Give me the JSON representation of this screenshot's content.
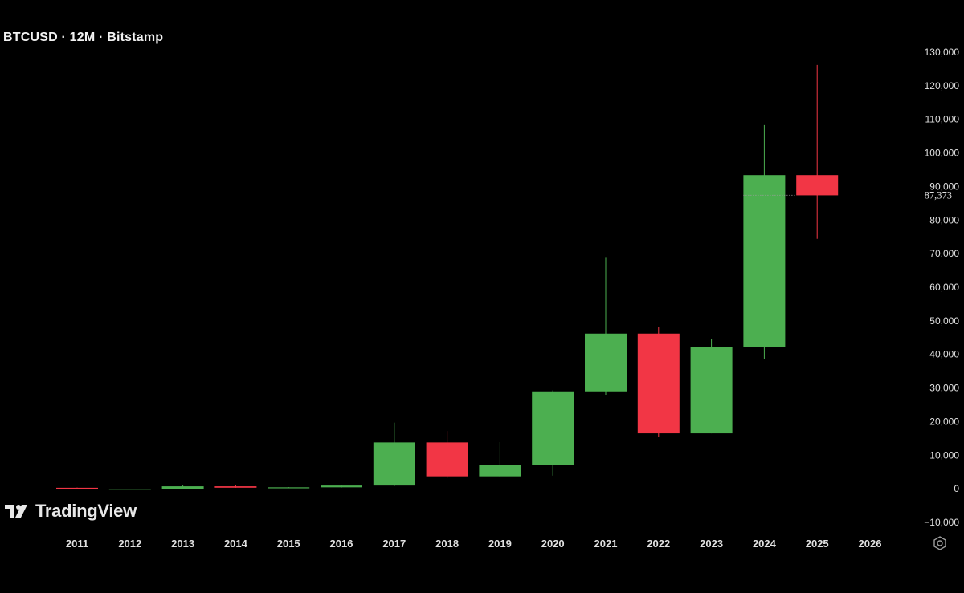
{
  "header": {
    "title": "BTCUSD · 12M · Bitstamp"
  },
  "branding": {
    "name": "TradingView"
  },
  "colors": {
    "up": "#4CAF50",
    "down": "#F23645",
    "background": "#000000",
    "axis_text": "#E0E0E0",
    "last_price_label": "#E0E0E0"
  },
  "icons": {
    "settings": "gear-icon",
    "logo": "tradingview-logo-icon"
  },
  "chart_data": {
    "type": "candlestick",
    "symbol": "BTCUSD",
    "interval": "12M",
    "exchange": "Bitstamp",
    "ylim": [
      -10000,
      130000
    ],
    "y_ticks": [
      130000,
      120000,
      110000,
      100000,
      90000,
      80000,
      70000,
      60000,
      50000,
      40000,
      30000,
      20000,
      10000,
      0,
      -10000
    ],
    "y_tick_labels": [
      "130,000",
      "120,000",
      "110,000",
      "100,000",
      "90,000",
      "80,000",
      "70,000",
      "60,000",
      "50,000",
      "40,000",
      "30,000",
      "20,000",
      "10,000",
      "0",
      "−10,000"
    ],
    "x_tick_labels": [
      "2011",
      "2012",
      "2013",
      "2014",
      "2015",
      "2016",
      "2017",
      "2018",
      "2019",
      "2020",
      "2021",
      "2022",
      "2023",
      "2024",
      "2025",
      "2026"
    ],
    "last_price": 87373,
    "last_price_label": "87,373",
    "candles": [
      {
        "year": "2011",
        "open": 300,
        "high": 350,
        "low": 0,
        "close": 5
      },
      {
        "year": "2012",
        "open": 5,
        "high": 20,
        "low": 4,
        "close": 13
      },
      {
        "year": "2013",
        "open": 13,
        "high": 1160,
        "low": 10,
        "close": 730
      },
      {
        "year": "2014",
        "open": 730,
        "high": 1000,
        "low": 300,
        "close": 320
      },
      {
        "year": "2015",
        "open": 320,
        "high": 500,
        "low": 150,
        "close": 430
      },
      {
        "year": "2016",
        "open": 430,
        "high": 980,
        "low": 350,
        "close": 960
      },
      {
        "year": "2017",
        "open": 960,
        "high": 19700,
        "low": 750,
        "close": 13800
      },
      {
        "year": "2018",
        "open": 13800,
        "high": 17200,
        "low": 3200,
        "close": 3700
      },
      {
        "year": "2019",
        "open": 3700,
        "high": 13900,
        "low": 3400,
        "close": 7200
      },
      {
        "year": "2020",
        "open": 7200,
        "high": 29300,
        "low": 3900,
        "close": 29000
      },
      {
        "year": "2021",
        "open": 29000,
        "high": 69000,
        "low": 28000,
        "close": 46200
      },
      {
        "year": "2022",
        "open": 46200,
        "high": 48200,
        "low": 15500,
        "close": 16500
      },
      {
        "year": "2023",
        "open": 16500,
        "high": 44700,
        "low": 16500,
        "close": 42300
      },
      {
        "year": "2024",
        "open": 42300,
        "high": 108300,
        "low": 38500,
        "close": 93400
      },
      {
        "year": "2025",
        "open": 93400,
        "high": 126200,
        "low": 74400,
        "close": 87373
      }
    ]
  }
}
